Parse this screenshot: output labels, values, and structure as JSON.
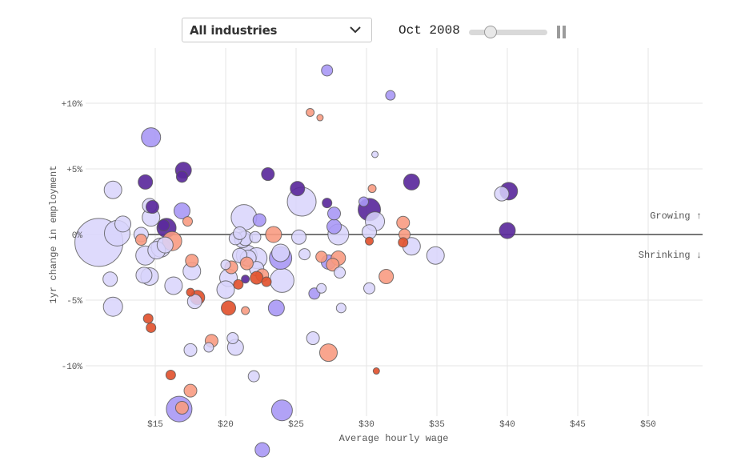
{
  "controls": {
    "industry_select": {
      "selected": "All industries",
      "icon": "chevron-down-icon"
    },
    "date_label": "Oct 2008",
    "timeline_progress": 0.27,
    "play_pause_icon": "pause-icon"
  },
  "colors": {
    "growing_strong": "#5b2a9c",
    "growing_mid": "#a898f5",
    "growing_light": "#d8d4fb",
    "shrinking_mid": "#f89b82",
    "shrinking_strong": "#e2532f",
    "outline": "#555555",
    "zero_line": "#777777",
    "grid": "#e6e6e6"
  },
  "chart_data": {
    "type": "scatter",
    "title": "",
    "xlabel": "Average hourly wage",
    "ylabel": "1yr change in employment",
    "xlim": [
      10.0,
      54.0
    ],
    "ylim": [
      -16.5,
      14.0
    ],
    "x_ticks": [
      15,
      20,
      25,
      30,
      35,
      40,
      45,
      50
    ],
    "x_tick_labels": [
      "$15",
      "$20",
      "$25",
      "$30",
      "$35",
      "$40",
      "$45",
      "$50"
    ],
    "y_ticks": [
      10,
      5,
      0,
      -5,
      -10
    ],
    "y_tick_labels": [
      "+10%",
      "+5%",
      "0%",
      "-5%",
      "-10%"
    ],
    "grid": true,
    "annotations": [
      {
        "text": "Growing ↑",
        "position": "right-above-zero"
      },
      {
        "text": "Shrinking ↓",
        "position": "right-below-zero"
      }
    ],
    "size_encoding": "employment (relative)",
    "color_encoding": [
      "dark-purple",
      "mid-purple",
      "light-purple",
      "salmon",
      "red-orange"
    ],
    "points": [
      {
        "x": 11.0,
        "y": -0.6,
        "s": 30,
        "c": "light"
      },
      {
        "x": 12.0,
        "y": 3.4,
        "s": 11,
        "c": "light"
      },
      {
        "x": 11.8,
        "y": -3.4,
        "s": 9,
        "c": "light"
      },
      {
        "x": 12.0,
        "y": -5.5,
        "s": 12,
        "c": "light"
      },
      {
        "x": 12.3,
        "y": 0.1,
        "s": 16,
        "c": "light"
      },
      {
        "x": 12.7,
        "y": 0.8,
        "s": 10,
        "c": "light"
      },
      {
        "x": 14.7,
        "y": 7.4,
        "s": 12,
        "c": "mid"
      },
      {
        "x": 14.3,
        "y": 4.0,
        "s": 9,
        "c": "dark"
      },
      {
        "x": 14.6,
        "y": 2.2,
        "s": 9,
        "c": "light"
      },
      {
        "x": 14.8,
        "y": 2.1,
        "s": 8,
        "c": "dark"
      },
      {
        "x": 14.7,
        "y": 1.3,
        "s": 11,
        "c": "light"
      },
      {
        "x": 14.0,
        "y": 0.0,
        "s": 9,
        "c": "light"
      },
      {
        "x": 14.0,
        "y": -0.4,
        "s": 7,
        "c": "salmon"
      },
      {
        "x": 14.3,
        "y": -1.6,
        "s": 12,
        "c": "light"
      },
      {
        "x": 14.6,
        "y": -3.2,
        "s": 11,
        "c": "light"
      },
      {
        "x": 14.2,
        "y": -3.1,
        "s": 10,
        "c": "light"
      },
      {
        "x": 15.1,
        "y": -1.2,
        "s": 11,
        "c": "light"
      },
      {
        "x": 15.4,
        "y": -1.0,
        "s": 12,
        "c": "light"
      },
      {
        "x": 15.7,
        "y": -0.8,
        "s": 10,
        "c": "light"
      },
      {
        "x": 15.8,
        "y": 0.5,
        "s": 12,
        "c": "dark"
      },
      {
        "x": 15.6,
        "y": 0.7,
        "s": 7,
        "c": "dark"
      },
      {
        "x": 16.2,
        "y": -0.5,
        "s": 12,
        "c": "salmon"
      },
      {
        "x": 16.3,
        "y": -3.9,
        "s": 11,
        "c": "light"
      },
      {
        "x": 14.5,
        "y": -6.4,
        "s": 6,
        "c": "red"
      },
      {
        "x": 14.7,
        "y": -7.1,
        "s": 6,
        "c": "red"
      },
      {
        "x": 17.0,
        "y": 4.9,
        "s": 10,
        "c": "dark"
      },
      {
        "x": 16.9,
        "y": 4.4,
        "s": 7,
        "c": "dark"
      },
      {
        "x": 16.9,
        "y": 1.8,
        "s": 10,
        "c": "mid"
      },
      {
        "x": 17.3,
        "y": 1.0,
        "s": 6,
        "c": "salmon"
      },
      {
        "x": 17.6,
        "y": -2.0,
        "s": 8,
        "c": "salmon"
      },
      {
        "x": 17.6,
        "y": -2.8,
        "s": 11,
        "c": "light"
      },
      {
        "x": 17.5,
        "y": -4.4,
        "s": 5,
        "c": "red"
      },
      {
        "x": 18.0,
        "y": -4.8,
        "s": 9,
        "c": "red"
      },
      {
        "x": 17.8,
        "y": -5.1,
        "s": 9,
        "c": "light"
      },
      {
        "x": 17.5,
        "y": -8.8,
        "s": 8,
        "c": "light"
      },
      {
        "x": 16.1,
        "y": -10.7,
        "s": 6,
        "c": "red"
      },
      {
        "x": 17.5,
        "y": -11.9,
        "s": 8,
        "c": "salmon"
      },
      {
        "x": 16.7,
        "y": -13.3,
        "s": 16,
        "c": "mid"
      },
      {
        "x": 16.9,
        "y": -13.2,
        "s": 8,
        "c": "salmon"
      },
      {
        "x": 19.0,
        "y": -8.1,
        "s": 8,
        "c": "salmon"
      },
      {
        "x": 18.8,
        "y": -8.6,
        "s": 6,
        "c": "light"
      },
      {
        "x": 20.5,
        "y": -7.9,
        "s": 7,
        "c": "light"
      },
      {
        "x": 20.7,
        "y": -8.6,
        "s": 10,
        "c": "light"
      },
      {
        "x": 22.0,
        "y": -10.8,
        "s": 7,
        "c": "light"
      },
      {
        "x": 24.0,
        "y": -13.4,
        "s": 13,
        "c": "mid"
      },
      {
        "x": 22.6,
        "y": -16.4,
        "s": 9,
        "c": "mid"
      },
      {
        "x": 20.0,
        "y": -2.3,
        "s": 6,
        "c": "light"
      },
      {
        "x": 20.2,
        "y": -3.3,
        "s": 11,
        "c": "light"
      },
      {
        "x": 20.4,
        "y": -2.5,
        "s": 8,
        "c": "salmon"
      },
      {
        "x": 20.0,
        "y": -4.2,
        "s": 11,
        "c": "light"
      },
      {
        "x": 20.2,
        "y": -5.6,
        "s": 9,
        "c": "red"
      },
      {
        "x": 20.9,
        "y": -3.8,
        "s": 6,
        "c": "red"
      },
      {
        "x": 21.4,
        "y": -5.8,
        "s": 5,
        "c": "salmon"
      },
      {
        "x": 20.7,
        "y": -0.3,
        "s": 8,
        "c": "light"
      },
      {
        "x": 21.3,
        "y": 1.3,
        "s": 16,
        "c": "light"
      },
      {
        "x": 21.2,
        "y": -0.4,
        "s": 10,
        "c": "light"
      },
      {
        "x": 21.4,
        "y": -0.3,
        "s": 9,
        "c": "light"
      },
      {
        "x": 21.0,
        "y": 0.1,
        "s": 8,
        "c": "light"
      },
      {
        "x": 22.4,
        "y": 1.1,
        "s": 8,
        "c": "mid"
      },
      {
        "x": 22.1,
        "y": -0.2,
        "s": 7,
        "c": "light"
      },
      {
        "x": 21.5,
        "y": -1.6,
        "s": 13,
        "c": "light"
      },
      {
        "x": 21.6,
        "y": -1.8,
        "s": 10,
        "c": "light"
      },
      {
        "x": 21.0,
        "y": -1.6,
        "s": 9,
        "c": "light"
      },
      {
        "x": 21.5,
        "y": -2.2,
        "s": 8,
        "c": "salmon"
      },
      {
        "x": 22.2,
        "y": -1.8,
        "s": 13,
        "c": "light"
      },
      {
        "x": 22.2,
        "y": -2.6,
        "s": 9,
        "c": "light"
      },
      {
        "x": 22.6,
        "y": -3.1,
        "s": 8,
        "c": "salmon"
      },
      {
        "x": 22.2,
        "y": -3.3,
        "s": 8,
        "c": "red"
      },
      {
        "x": 21.4,
        "y": -3.4,
        "s": 5,
        "c": "dark"
      },
      {
        "x": 22.9,
        "y": -3.6,
        "s": 6,
        "c": "red"
      },
      {
        "x": 23.0,
        "y": 4.6,
        "s": 8,
        "c": "dark"
      },
      {
        "x": 23.4,
        "y": 0.0,
        "s": 10,
        "c": "salmon"
      },
      {
        "x": 23.9,
        "y": -1.4,
        "s": 11,
        "c": "light"
      },
      {
        "x": 23.9,
        "y": -1.8,
        "s": 14,
        "c": "mid"
      },
      {
        "x": 24.0,
        "y": -3.5,
        "s": 15,
        "c": "light"
      },
      {
        "x": 23.6,
        "y": -5.6,
        "s": 10,
        "c": "mid"
      },
      {
        "x": 25.1,
        "y": 3.5,
        "s": 9,
        "c": "dark"
      },
      {
        "x": 25.4,
        "y": 2.5,
        "s": 18,
        "c": "light"
      },
      {
        "x": 26.0,
        "y": 9.3,
        "s": 5,
        "c": "salmon"
      },
      {
        "x": 26.7,
        "y": 8.9,
        "s": 4,
        "c": "salmon"
      },
      {
        "x": 27.2,
        "y": 12.5,
        "s": 7,
        "c": "mid"
      },
      {
        "x": 25.2,
        "y": -0.2,
        "s": 9,
        "c": "light"
      },
      {
        "x": 25.6,
        "y": -1.5,
        "s": 7,
        "c": "light"
      },
      {
        "x": 26.3,
        "y": -4.5,
        "s": 7,
        "c": "mid"
      },
      {
        "x": 26.8,
        "y": -4.1,
        "s": 6,
        "c": "light"
      },
      {
        "x": 26.2,
        "y": -7.9,
        "s": 8,
        "c": "light"
      },
      {
        "x": 27.3,
        "y": -9.0,
        "s": 11,
        "c": "salmon"
      },
      {
        "x": 27.2,
        "y": 2.4,
        "s": 6,
        "c": "dark"
      },
      {
        "x": 27.7,
        "y": 1.6,
        "s": 8,
        "c": "mid"
      },
      {
        "x": 27.7,
        "y": 0.6,
        "s": 9,
        "c": "mid"
      },
      {
        "x": 28.0,
        "y": 0.0,
        "s": 13,
        "c": "light"
      },
      {
        "x": 26.8,
        "y": -1.7,
        "s": 7,
        "c": "salmon"
      },
      {
        "x": 27.3,
        "y": -2.1,
        "s": 9,
        "c": "mid"
      },
      {
        "x": 27.6,
        "y": -2.3,
        "s": 8,
        "c": "salmon"
      },
      {
        "x": 28.0,
        "y": -1.8,
        "s": 9,
        "c": "salmon"
      },
      {
        "x": 28.1,
        "y": -2.9,
        "s": 7,
        "c": "light"
      },
      {
        "x": 28.2,
        "y": -5.6,
        "s": 6,
        "c": "light"
      },
      {
        "x": 29.8,
        "y": 2.5,
        "s": 6,
        "c": "mid"
      },
      {
        "x": 30.2,
        "y": 1.9,
        "s": 14,
        "c": "dark"
      },
      {
        "x": 30.6,
        "y": 1.0,
        "s": 12,
        "c": "light"
      },
      {
        "x": 30.2,
        "y": 0.2,
        "s": 9,
        "c": "light"
      },
      {
        "x": 30.4,
        "y": 3.5,
        "s": 5,
        "c": "salmon"
      },
      {
        "x": 30.6,
        "y": 6.1,
        "s": 4,
        "c": "light"
      },
      {
        "x": 31.7,
        "y": 10.6,
        "s": 6,
        "c": "mid"
      },
      {
        "x": 30.2,
        "y": -0.5,
        "s": 5,
        "c": "red"
      },
      {
        "x": 30.2,
        "y": -4.1,
        "s": 7,
        "c": "light"
      },
      {
        "x": 31.4,
        "y": -3.2,
        "s": 9,
        "c": "salmon"
      },
      {
        "x": 32.6,
        "y": 0.9,
        "s": 8,
        "c": "salmon"
      },
      {
        "x": 32.7,
        "y": 0.0,
        "s": 7,
        "c": "salmon"
      },
      {
        "x": 32.6,
        "y": -0.6,
        "s": 6,
        "c": "red"
      },
      {
        "x": 33.2,
        "y": -0.9,
        "s": 11,
        "c": "light"
      },
      {
        "x": 33.2,
        "y": 4.0,
        "s": 10,
        "c": "dark"
      },
      {
        "x": 34.9,
        "y": -1.6,
        "s": 11,
        "c": "light"
      },
      {
        "x": 30.7,
        "y": -10.4,
        "s": 4,
        "c": "red"
      },
      {
        "x": 39.6,
        "y": 3.1,
        "s": 9,
        "c": "light"
      },
      {
        "x": 40.1,
        "y": 3.3,
        "s": 11,
        "c": "dark"
      },
      {
        "x": 40.0,
        "y": 0.3,
        "s": 10,
        "c": "dark"
      }
    ]
  }
}
